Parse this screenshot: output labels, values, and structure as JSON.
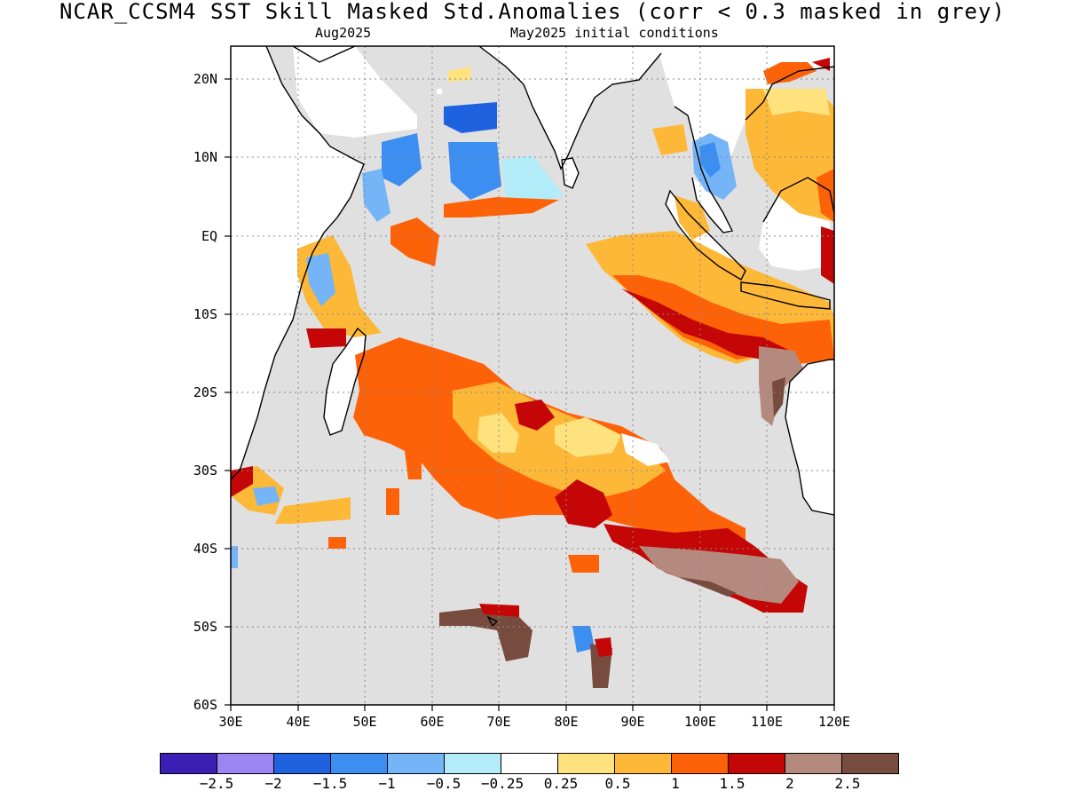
{
  "header": {
    "title": "NCAR_CCSM4   SST Skill Masked Std.Anomalies (corr < 0.3 masked in grey)",
    "valid_month": "Aug2025",
    "init_label": "May2025 initial conditions"
  },
  "map": {
    "region": "Indian Ocean",
    "lon_range": [
      30,
      120
    ],
    "lat_range": [
      -60,
      24
    ],
    "mask_color": "#e0e0e0",
    "land_color": "#ffffff",
    "coastline_color": "#000000"
  },
  "axes": {
    "y_ticks": [
      {
        "label": "20N",
        "lat": 20
      },
      {
        "label": "10N",
        "lat": 10
      },
      {
        "label": "EQ",
        "lat": 0
      },
      {
        "label": "10S",
        "lat": -10
      },
      {
        "label": "20S",
        "lat": -20
      },
      {
        "label": "30S",
        "lat": -30
      },
      {
        "label": "40S",
        "lat": -40
      },
      {
        "label": "50S",
        "lat": -50
      },
      {
        "label": "60S",
        "lat": -60
      }
    ],
    "x_ticks": [
      {
        "label": "30E",
        "lon": 30
      },
      {
        "label": "40E",
        "lon": 40
      },
      {
        "label": "50E",
        "lon": 50
      },
      {
        "label": "60E",
        "lon": 60
      },
      {
        "label": "70E",
        "lon": 70
      },
      {
        "label": "80E",
        "lon": 80
      },
      {
        "label": "90E",
        "lon": 90
      },
      {
        "label": "100E",
        "lon": 100
      },
      {
        "label": "110E",
        "lon": 110
      },
      {
        "label": "120E",
        "lon": 120
      }
    ]
  },
  "colorbar": {
    "colors": [
      "#3a1fb4",
      "#9a86f2",
      "#1f62e0",
      "#3c8ef0",
      "#74b4f7",
      "#b2ecf8",
      "#ffffff",
      "#fde27e",
      "#fdb838",
      "#fd6208",
      "#c40606",
      "#b58a7e",
      "#774c3e"
    ],
    "labels": [
      "−2.5",
      "−2",
      "−1.5",
      "−1",
      "−0.5",
      "−0.25",
      "0.25",
      "0.5",
      "1",
      "1.5",
      "2",
      "2.5"
    ]
  }
}
